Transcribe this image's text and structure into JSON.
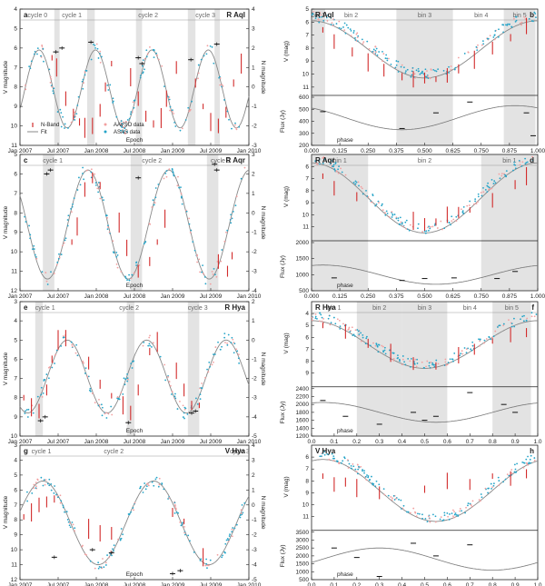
{
  "chart_data": [
    {
      "id": "a",
      "star": "R Aql",
      "type": "scatter",
      "kind": "time",
      "xlabel": "Epoch",
      "ylabel": "V magnitude",
      "y2label": "N magnitude",
      "xlim": [
        2007.0,
        2010.0
      ],
      "ylim": [
        4,
        11
      ],
      "y2lim": [
        -3,
        4
      ],
      "xticks": [
        "Jan 2007",
        "Jul 2007",
        "Jan 2008",
        "Jul 2008",
        "Jan 2009",
        "Jul 2009",
        "Jan 2010"
      ],
      "yticks": [
        4,
        5,
        6,
        7,
        8,
        9,
        10,
        11
      ],
      "y2ticks": [
        4,
        3,
        2,
        1,
        0,
        -1,
        -2,
        -3
      ],
      "cycles": [
        {
          "label": "cycle 0",
          "x": 2007.1
        },
        {
          "label": "cycle 1",
          "x": 2007.55
        },
        {
          "label": "cycle 2",
          "x": 2008.55
        },
        {
          "label": "cycle 3",
          "x": 2009.3
        }
      ],
      "bands": [
        [
          2007.45,
          2007.52
        ],
        [
          2007.88,
          2007.98
        ],
        [
          2008.52,
          2008.6
        ],
        [
          2009.2,
          2009.3
        ],
        [
          2009.55,
          2009.62
        ]
      ],
      "fit": {
        "period_days": 270,
        "mean": 8.1,
        "amp": 2.0,
        "phase0": 2007.25
      },
      "vband": [
        [
          2007.42,
          6.5
        ],
        [
          2007.48,
          7.0
        ],
        [
          2007.6,
          8.6
        ],
        [
          2007.7,
          9.4
        ],
        [
          2007.78,
          9.8
        ],
        [
          2007.85,
          10.1
        ],
        [
          2007.95,
          10.0
        ],
        [
          2008.05,
          9.2
        ],
        [
          2008.12,
          8.0
        ],
        [
          2008.2,
          6.8
        ],
        [
          2008.45,
          7.5
        ],
        [
          2008.55,
          8.6
        ],
        [
          2008.65,
          9.5
        ],
        [
          2008.75,
          9.9
        ],
        [
          2008.85,
          9.6
        ],
        [
          2008.92,
          8.6
        ],
        [
          2009.05,
          7.0
        ],
        [
          2009.3,
          7.8
        ],
        [
          2009.4,
          9.0
        ],
        [
          2009.5,
          9.8
        ],
        [
          2009.6,
          10.0
        ],
        [
          2009.7,
          9.3
        ],
        [
          2009.8,
          7.8
        ],
        [
          2009.9,
          6.8
        ]
      ],
      "nband": [
        [
          2007.47,
          1.8
        ],
        [
          2007.55,
          2.0
        ],
        [
          2007.93,
          2.3
        ],
        [
          2008.55,
          1.5
        ],
        [
          2008.6,
          1.2
        ],
        [
          2009.24,
          1.4
        ],
        [
          2009.58,
          2.2
        ]
      ],
      "legend": [
        "N-Band",
        "Fit",
        "AAVSO data",
        "ASAS data"
      ]
    },
    {
      "id": "b",
      "star": "R Aql",
      "type": "scatter",
      "kind": "phase",
      "xlabel": "phase",
      "ylabel": "V (mag)",
      "y2label": "Flux (Jy)",
      "xlim": [
        0,
        1
      ],
      "ylim": [
        5,
        11.5
      ],
      "flux_ylim": [
        200,
        600
      ],
      "xticks": [
        "0.000",
        "0.125",
        "0.250",
        "0.375",
        "0.500",
        "0.625",
        "0.750",
        "0.875",
        "1.000"
      ],
      "yticks": [
        5,
        6,
        7,
        8,
        9,
        10,
        11
      ],
      "flux_yticks": [
        600,
        500,
        400,
        300,
        200
      ],
      "bins": [
        {
          "label": "bin 1",
          "from": 0.0,
          "to": 0.06,
          "shade": true
        },
        {
          "label": "bin 2",
          "from": 0.1,
          "to": 0.25,
          "shade": false
        },
        {
          "label": "bin 3",
          "from": 0.375,
          "to": 0.625,
          "shade": true
        },
        {
          "label": "bin 4",
          "from": 0.65,
          "to": 0.85,
          "shade": false
        },
        {
          "label": "bin 5",
          "from": 0.85,
          "to": 0.99,
          "shade": true
        }
      ],
      "fit": {
        "mean": 8.1,
        "amp": 2.2,
        "min_phase": 0.5
      },
      "vband": [
        [
          0.05,
          6.6
        ],
        [
          0.1,
          7.5
        ],
        [
          0.18,
          8.3
        ],
        [
          0.25,
          9.1
        ],
        [
          0.32,
          9.7
        ],
        [
          0.4,
          10.2
        ],
        [
          0.45,
          10.4
        ],
        [
          0.5,
          10.3
        ],
        [
          0.55,
          10.4
        ],
        [
          0.6,
          10.1
        ],
        [
          0.65,
          9.6
        ],
        [
          0.72,
          8.9
        ],
        [
          0.8,
          8.0
        ],
        [
          0.88,
          7.2
        ],
        [
          0.95,
          6.3
        ]
      ],
      "flux": [
        [
          0.05,
          480
        ],
        [
          0.4,
          340
        ],
        [
          0.55,
          470
        ],
        [
          0.7,
          560
        ],
        [
          0.95,
          470
        ],
        [
          0.98,
          280
        ]
      ],
      "flux_fit": {
        "mean": 430,
        "amp": 100,
        "min_phase": 0.4
      }
    },
    {
      "id": "c",
      "star": "R Aqr",
      "type": "scatter",
      "kind": "time",
      "xlabel": "Epoch",
      "ylabel": "V magnitude",
      "y2label": "N magnitude",
      "xlim": [
        2007.0,
        2010.0
      ],
      "ylim": [
        5,
        12
      ],
      "y2lim": [
        -4,
        3
      ],
      "xticks": [
        "Jan 2007",
        "Jul 2007",
        "Jan 2008",
        "Jul 2008",
        "Jan 2009",
        "Jul 2009",
        "Jan 2010"
      ],
      "yticks": [
        5,
        6,
        7,
        8,
        9,
        10,
        11,
        12
      ],
      "y2ticks": [
        3,
        2,
        1,
        0,
        -1,
        -2,
        -3,
        -4
      ],
      "cycles": [
        {
          "label": "cycle 1",
          "x": 2007.3
        },
        {
          "label": "cycle 2",
          "x": 2008.6
        },
        {
          "label": "cycle 3",
          "x": 2009.5
        }
      ],
      "bands": [
        [
          2007.3,
          2007.45
        ],
        [
          2008.45,
          2008.6
        ],
        [
          2009.45,
          2009.6
        ]
      ],
      "fit": {
        "period_days": 387,
        "mean": 8.6,
        "amp": 2.8,
        "phase0": 2007.89
      },
      "vband": [
        [
          2007.68,
          9.5
        ],
        [
          2007.75,
          8.7
        ],
        [
          2007.85,
          6.8
        ],
        [
          2007.95,
          6.2
        ],
        [
          2008.05,
          6.6
        ],
        [
          2008.3,
          8.5
        ],
        [
          2008.4,
          9.8
        ],
        [
          2008.55,
          11.0
        ],
        [
          2008.7,
          10.5
        ],
        [
          2008.8,
          9.5
        ],
        [
          2008.9,
          8.3
        ],
        [
          2009.6,
          10.5
        ],
        [
          2009.72,
          11.0
        ],
        [
          2009.78,
          10.2
        ]
      ],
      "nband": [
        [
          2007.35,
          2.0
        ],
        [
          2007.4,
          2.2
        ],
        [
          2008.55,
          1.8
        ],
        [
          2009.55,
          2.5
        ],
        [
          2009.58,
          2.2
        ]
      ],
      "legend": []
    },
    {
      "id": "d",
      "star": "R Aqr",
      "type": "scatter",
      "kind": "phase",
      "xlabel": "phase",
      "ylabel": "V (mag)",
      "y2label": "Flux (Jy)",
      "xlim": [
        0,
        1
      ],
      "ylim": [
        5,
        12
      ],
      "flux_ylim": [
        500,
        2000
      ],
      "xticks": [
        "0.000",
        "0.125",
        "0.250",
        "0.375",
        "0.500",
        "0.625",
        "0.750",
        "0.875",
        "1.000"
      ],
      "yticks": [
        6,
        7,
        8,
        9,
        10,
        11
      ],
      "flux_yticks": [
        2000,
        1500,
        1000,
        500
      ],
      "bins": [
        {
          "label": "bin 1",
          "from": 0.0,
          "to": 0.25,
          "shade": true
        },
        {
          "label": "bin 2",
          "from": 0.25,
          "to": 0.75,
          "shade": false
        },
        {
          "label": "bin 1",
          "from": 0.75,
          "to": 1.0,
          "shade": true
        }
      ],
      "fit": {
        "mean": 8.6,
        "amp": 2.9,
        "min_phase": 0.5
      },
      "vband": [
        [
          0.05,
          6.8
        ],
        [
          0.1,
          7.8
        ],
        [
          0.2,
          8.5
        ],
        [
          0.45,
          10.5
        ],
        [
          0.5,
          10.8
        ],
        [
          0.55,
          10.6
        ],
        [
          0.6,
          10.0
        ],
        [
          0.65,
          9.8
        ],
        [
          0.7,
          9.6
        ],
        [
          0.8,
          8.8
        ],
        [
          0.9,
          7.5
        ],
        [
          0.95,
          6.8
        ]
      ],
      "flux": [
        [
          0.1,
          900
        ],
        [
          0.4,
          820
        ],
        [
          0.5,
          880
        ],
        [
          0.63,
          900
        ],
        [
          0.82,
          880
        ],
        [
          0.9,
          1100
        ]
      ],
      "flux_fit": {
        "mean": 1000,
        "amp": 300,
        "min_phase": 0.55
      }
    },
    {
      "id": "e",
      "star": "R Hya",
      "type": "scatter",
      "kind": "time",
      "xlabel": "Epoch",
      "ylabel": "V magnitude",
      "y2label": "N magnitude",
      "xlim": [
        2007.0,
        2010.0
      ],
      "ylim": [
        3,
        10
      ],
      "y2lim": [
        -5,
        2
      ],
      "xticks": [
        "Jan 2007",
        "Jul 2007",
        "Jan 2008",
        "Jul 2008",
        "Jan 2009",
        "Jul 2009",
        "Jan 2010"
      ],
      "yticks": [
        3,
        4,
        5,
        6,
        7,
        8,
        9,
        10
      ],
      "y2ticks": [
        -5,
        -4,
        -3,
        -2,
        -1,
        0,
        1,
        2
      ],
      "cycles": [
        {
          "label": "cycle 1",
          "x": 2007.2
        },
        {
          "label": "cycle 2",
          "x": 2008.3
        },
        {
          "label": "cycle 3",
          "x": 2009.2
        }
      ],
      "bands": [
        [
          2007.2,
          2007.3
        ],
        [
          2008.4,
          2008.5
        ],
        [
          2009.2,
          2009.35
        ]
      ],
      "fit": {
        "period_days": 380,
        "mean": 6.9,
        "amp": 1.9,
        "phase0": 2007.62
      },
      "vband": [
        [
          2007.05,
          8.0
        ],
        [
          2007.15,
          8.5
        ],
        [
          2007.25,
          8.7
        ],
        [
          2007.35,
          7.6
        ],
        [
          2007.42,
          6.0
        ],
        [
          2007.5,
          5.0
        ],
        [
          2007.6,
          4.9
        ],
        [
          2007.9,
          6.2
        ],
        [
          2008.05,
          7.3
        ],
        [
          2008.2,
          7.9
        ],
        [
          2008.35,
          8.4
        ],
        [
          2008.45,
          8.8
        ],
        [
          2008.55,
          7.6
        ],
        [
          2008.7,
          5.6
        ],
        [
          2008.8,
          5.1
        ],
        [
          2009.05,
          6.6
        ],
        [
          2009.15,
          7.6
        ],
        [
          2009.25,
          8.4
        ],
        [
          2009.35,
          8.4
        ]
      ],
      "nband": [
        [
          2007.27,
          -4.2
        ],
        [
          2007.33,
          -4.0
        ],
        [
          2008.42,
          -4.3
        ],
        [
          2009.25,
          -3.8
        ],
        [
          2009.3,
          -3.7
        ]
      ],
      "legend": []
    },
    {
      "id": "f",
      "star": "R Hya",
      "type": "scatter",
      "kind": "phase",
      "xlabel": "phase",
      "ylabel": "V (mag)",
      "y2label": "Flux (Jy)",
      "xlim": [
        0,
        1
      ],
      "ylim": [
        3,
        10
      ],
      "flux_ylim": [
        1200,
        2400
      ],
      "xticks": [
        "0.0",
        "0.1",
        "0.2",
        "0.3",
        "0.4",
        "0.5",
        "0.6",
        "0.7",
        "0.8",
        "0.9",
        "1.0"
      ],
      "yticks": [
        4,
        5,
        6,
        7,
        8,
        9
      ],
      "flux_yticks": [
        2400,
        2200,
        2000,
        1800,
        1600,
        1400,
        1200
      ],
      "bins": [
        {
          "label": "bin 1",
          "from": 0.0,
          "to": 0.2,
          "shade": false
        },
        {
          "label": "bin 2",
          "from": 0.2,
          "to": 0.4,
          "shade": true
        },
        {
          "label": "bin 3",
          "from": 0.4,
          "to": 0.6,
          "shade": true
        },
        {
          "label": "bin 4",
          "from": 0.6,
          "to": 0.8,
          "shade": false
        },
        {
          "label": "bin 5",
          "from": 0.8,
          "to": 0.97,
          "shade": true
        }
      ],
      "fit": {
        "mean": 6.6,
        "amp": 2.0,
        "min_phase": 0.5
      },
      "vband": [
        [
          0.05,
          5.0
        ],
        [
          0.15,
          5.5
        ],
        [
          0.25,
          6.5
        ],
        [
          0.35,
          7.3
        ],
        [
          0.45,
          8.2
        ],
        [
          0.55,
          8.4
        ],
        [
          0.65,
          7.5
        ],
        [
          0.72,
          7.0
        ],
        [
          0.8,
          6.3
        ],
        [
          0.88,
          5.8
        ],
        [
          0.95,
          5.6
        ]
      ],
      "flux": [
        [
          0.05,
          2100
        ],
        [
          0.15,
          1700
        ],
        [
          0.3,
          1500
        ],
        [
          0.45,
          1800
        ],
        [
          0.5,
          1600
        ],
        [
          0.55,
          1700
        ],
        [
          0.7,
          2300
        ],
        [
          0.85,
          2000
        ],
        [
          0.9,
          1800
        ]
      ],
      "flux_fit": {
        "mean": 1800,
        "amp": 250,
        "min_phase": 0.55
      }
    },
    {
      "id": "g",
      "star": "V Hya",
      "type": "scatter",
      "kind": "time",
      "xlabel": "Epoch",
      "ylabel": "V magnitude",
      "y2label": "N magnitude",
      "xlim": [
        2007.0,
        2010.0
      ],
      "ylim": [
        3,
        12
      ],
      "y2lim": [
        -5,
        4
      ],
      "xticks": [
        "Jan 2007",
        "Jul 2007",
        "Jan 2008",
        "Jul 2008",
        "Jan 2009",
        "Jul 2009",
        "Jan 2010"
      ],
      "yticks": [
        3,
        4,
        5,
        6,
        7,
        8,
        9,
        10,
        11,
        12
      ],
      "y2ticks": [
        -5,
        -4,
        -3,
        -2,
        -1,
        0,
        1,
        2,
        3,
        4
      ],
      "cycles": [
        {
          "label": "cycle 1",
          "x": 2007.15
        },
        {
          "label": "cycle 2",
          "x": 2008.1
        },
        {
          "label": "cycle 3",
          "x": 2009.75
        }
      ],
      "bands": [],
      "fit": {
        "period_days": 530,
        "mean": 8.2,
        "amp": 2.8,
        "phase0": 2007.3
      },
      "vband": [
        [
          2007.05,
          7.8
        ],
        [
          2007.15,
          7.5
        ],
        [
          2007.25,
          7.0
        ],
        [
          2007.35,
          6.8
        ],
        [
          2007.45,
          6.6
        ],
        [
          2007.9,
          8.6
        ],
        [
          2008.05,
          8.9
        ],
        [
          2008.2,
          8.9
        ],
        [
          2009.0,
          7.5
        ],
        [
          2009.15,
          8.1
        ],
        [
          2009.4,
          10.5
        ]
      ],
      "nband": [
        [
          2007.45,
          -3.5
        ],
        [
          2007.95,
          -3.0
        ],
        [
          2008.2,
          -3.2
        ],
        [
          2009.0,
          -4.6
        ],
        [
          2009.1,
          -4.4
        ]
      ],
      "legend": []
    },
    {
      "id": "h",
      "star": "V Hya",
      "type": "scatter",
      "kind": "phase",
      "xlabel": "phase",
      "ylabel": "V (mag)",
      "y2label": "Flux (Jy)",
      "xlim": [
        0,
        1
      ],
      "ylim": [
        5,
        12
      ],
      "flux_ylim": [
        500,
        3500
      ],
      "xticks": [
        "0.0",
        "0.1",
        "0.2",
        "0.3",
        "0.4",
        "0.5",
        "0.6",
        "0.7",
        "0.8",
        "0.9",
        "1.0"
      ],
      "yticks": [
        6,
        7,
        8,
        9,
        10,
        11
      ],
      "flux_yticks": [
        3500,
        3000,
        2500,
        2000,
        1500,
        1000,
        500
      ],
      "bins": [],
      "fit": {
        "mean": 8.8,
        "amp": 2.6,
        "min_phase": 0.55
      },
      "vband": [
        [
          0.05,
          7.6
        ],
        [
          0.1,
          8.3
        ],
        [
          0.15,
          8.1
        ],
        [
          0.2,
          8.6
        ],
        [
          0.3,
          9.0
        ],
        [
          0.5,
          8.7
        ],
        [
          0.6,
          8.0
        ],
        [
          0.7,
          8.3
        ],
        [
          0.8,
          7.6
        ],
        [
          0.88,
          7.8
        ],
        [
          0.95,
          7.4
        ]
      ],
      "flux": [
        [
          0.1,
          2500
        ],
        [
          0.2,
          1900
        ],
        [
          0.3,
          700
        ],
        [
          0.45,
          2800
        ],
        [
          0.55,
          2000
        ],
        [
          0.7,
          2700
        ]
      ],
      "flux_fit": {
        "mean": 1800,
        "amp": 700,
        "min_phase": 0.8
      }
    }
  ],
  "colors": {
    "vband": "#d22b2b",
    "aavso": "#f2a0a0",
    "asas": "#25a4c8",
    "nband": "#111111",
    "fit": "#888888",
    "band": "#e3e3e3"
  }
}
